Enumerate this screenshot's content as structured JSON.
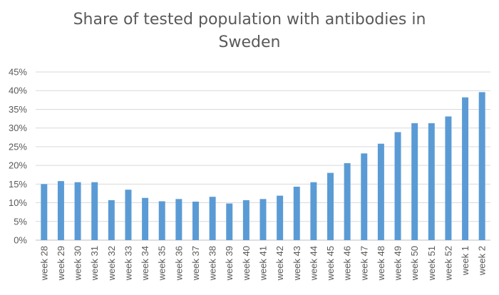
{
  "chart_data": {
    "type": "bar",
    "title_line1": "Share of tested population with antibodies in",
    "title_line2": "Sweden",
    "xlabel": "",
    "ylabel": "",
    "ylim": [
      0,
      45
    ],
    "y_ticks": [
      "0%",
      "5%",
      "10%",
      "15%",
      "20%",
      "25%",
      "30%",
      "35%",
      "40%",
      "45%"
    ],
    "y_tick_values": [
      0,
      5,
      10,
      15,
      20,
      25,
      30,
      35,
      40,
      45
    ],
    "grid": true,
    "legend": "none",
    "bar_color": "#5b9bd5",
    "categories": [
      "week 28",
      "week 29",
      "week 30",
      "week 31",
      "week 32",
      "week 33",
      "week 34",
      "week 35",
      "week 36",
      "week 37",
      "week 38",
      "week 39",
      "week 40",
      "week 41",
      "week 42",
      "week 43",
      "week 44",
      "week 45",
      "week 46",
      "week 47",
      "week 48",
      "week 49",
      "week 50",
      "week 51",
      "week 52",
      "week 1",
      "week 2"
    ],
    "values": [
      15.0,
      15.8,
      15.5,
      15.5,
      10.7,
      13.5,
      11.3,
      10.4,
      11.0,
      10.3,
      11.6,
      9.8,
      10.7,
      11.0,
      11.9,
      14.3,
      15.5,
      18.0,
      20.6,
      23.2,
      25.8,
      28.9,
      31.3,
      31.3,
      33.1,
      38.2,
      39.6
    ]
  }
}
